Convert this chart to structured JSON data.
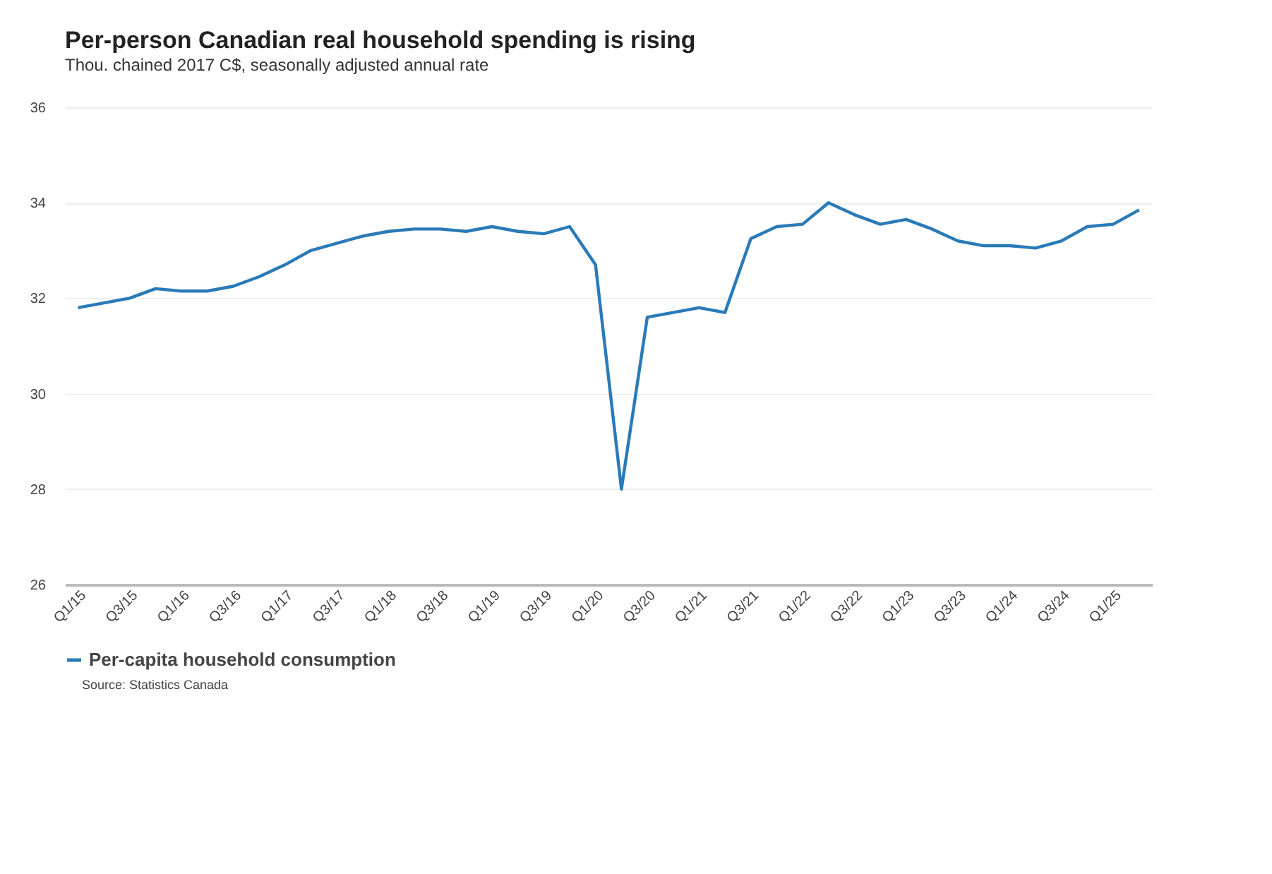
{
  "chart_data": {
    "type": "line",
    "title": "Per-person Canadian real household spending is rising",
    "subtitle": "Thou. chained 2017 C$, seasonally adjusted annual rate",
    "categories": [
      "Q1/15",
      null,
      "Q3/15",
      null,
      "Q1/16",
      null,
      "Q3/16",
      null,
      "Q1/17",
      null,
      "Q3/17",
      null,
      "Q1/18",
      null,
      "Q3/18",
      null,
      "Q1/19",
      null,
      "Q3/19",
      null,
      "Q1/20",
      null,
      "Q3/20",
      null,
      "Q1/21",
      null,
      "Q3/21",
      null,
      "Q1/22",
      null,
      "Q3/22",
      null,
      "Q1/23",
      null,
      "Q3/23",
      null,
      "Q1/24",
      null,
      "Q3/24",
      null,
      "Q1/25",
      null
    ],
    "series": [
      {
        "name": "Per-capita household consumption",
        "color": "#2a7ab8",
        "values": [
          31.8,
          31.9,
          32.0,
          32.2,
          32.15,
          32.15,
          32.25,
          32.45,
          32.7,
          33.0,
          33.15,
          33.3,
          33.4,
          33.45,
          33.45,
          33.4,
          33.5,
          33.4,
          33.35,
          33.5,
          32.7,
          28.0,
          31.6,
          31.7,
          31.8,
          31.7,
          33.25,
          33.5,
          33.55,
          34.0,
          33.75,
          33.55,
          33.65,
          33.45,
          33.2,
          33.1,
          33.1,
          33.05,
          33.2,
          33.5,
          33.55,
          33.85
        ]
      }
    ],
    "ylim": [
      26,
      36
    ],
    "yticks": [
      26,
      28,
      30,
      32,
      34,
      36
    ],
    "grid": "y",
    "legend": "bottom",
    "annotations": [
      "Source: Statistics Canada"
    ]
  }
}
